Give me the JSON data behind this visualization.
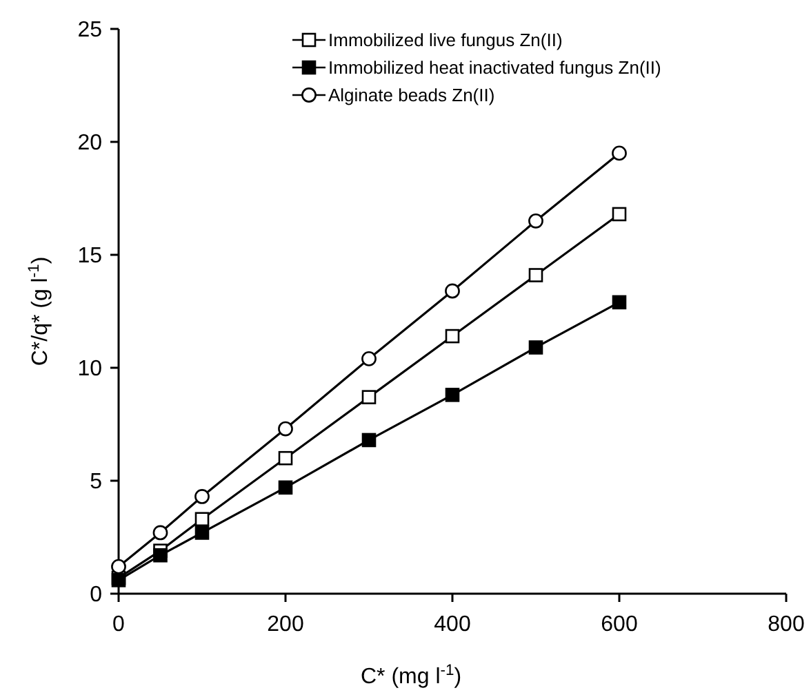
{
  "chart_data": {
    "type": "line",
    "xlabel": "C* (mg l$^{-1}$)",
    "ylabel": "C*/q* (g l$^{-1}$)",
    "x": [
      0,
      50,
      100,
      200,
      300,
      400,
      500,
      600
    ],
    "series": [
      {
        "name": "Immobilized live fungus Zn(II)",
        "color": "#000000",
        "marker": "square",
        "values": [
          0.7,
          1.9,
          3.3,
          6.0,
          8.7,
          11.4,
          14.1,
          16.8
        ]
      },
      {
        "name": "Immobilized heat inactivated fungus Zn(II)",
        "color": "#000000",
        "marker": "square",
        "values": [
          0.6,
          1.7,
          2.7,
          4.7,
          6.8,
          8.8,
          10.9,
          12.9
        ]
      },
      {
        "name": "Alginate beads Zn(II)",
        "color": "#000000",
        "marker": "circle",
        "values": [
          1.2,
          2.7,
          4.3,
          7.3,
          10.4,
          13.4,
          16.5,
          19.5
        ]
      }
    ],
    "xlim": [
      0,
      800
    ],
    "xticks": [
      0,
      200,
      400,
      600,
      800
    ],
    "ylim": [
      0,
      25
    ],
    "yticks": [
      0,
      5,
      10,
      15,
      20,
      25
    ],
    "grid": false,
    "legend": "top",
    "line_style": "solid"
  }
}
